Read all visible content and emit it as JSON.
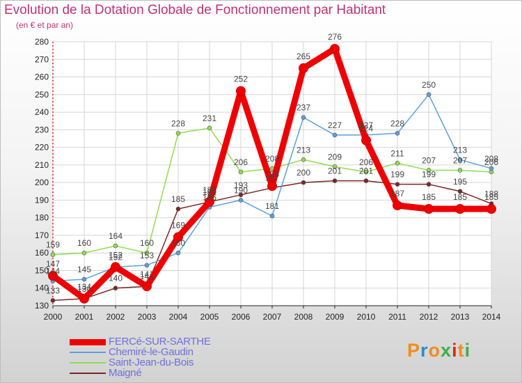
{
  "title": "Evolution de la Dotation Globale de Fonctionnement par Habitant",
  "subtitle": "(en € et par an)",
  "logo": {
    "letters": [
      "P",
      "r",
      "o",
      "x",
      "i",
      "t",
      "i"
    ],
    "colors": [
      "#f08c1e",
      "#1f8fd0",
      "#f08c1e",
      "#3cb043",
      "#e2231a",
      "#f08c1e",
      "#3cb043"
    ]
  },
  "chart_data": {
    "type": "line",
    "title": "Evolution de la Dotation Globale de Fonctionnement par Habitant",
    "subtitle": "(en € et par an)",
    "xlabel": "",
    "ylabel": "",
    "categories": [
      "2000",
      "2001",
      "2002",
      "2003",
      "2004",
      "2005",
      "2006",
      "2007",
      "2008",
      "2009",
      "2010",
      "2011",
      "2012",
      "2013",
      "2014"
    ],
    "ylim": [
      130,
      280
    ],
    "yticks": [
      130,
      140,
      150,
      160,
      170,
      180,
      190,
      200,
      210,
      220,
      230,
      240,
      250,
      260,
      270,
      280
    ],
    "grid": true,
    "legend_position": "bottom-left",
    "series": [
      {
        "name": "FERCé-SUR-SARTHE",
        "color": "#ee0000",
        "values": [
          147,
          134,
          152,
          141,
          169,
          189,
          252,
          198,
          265,
          276,
          224,
          187,
          185,
          185,
          185
        ]
      },
      {
        "name": "Chemiré-le-Gaudin",
        "color": "#5ba0d8",
        "values": [
          144,
          145,
          152,
          153,
          160,
          186,
          190,
          181,
          237,
          227,
          227,
          228,
          250,
          213,
          208
        ]
      },
      {
        "name": "Saint-Jean-du-Bois",
        "color": "#8fdc4e",
        "values": [
          159,
          160,
          164,
          160,
          228,
          231,
          206,
          208,
          213,
          209,
          206,
          211,
          207,
          207,
          206
        ]
      },
      {
        "name": "Maigné",
        "color": "#7a2626",
        "values": [
          133,
          134,
          140,
          141,
          185,
          189,
          193,
          197,
          200,
          201,
          201,
          199,
          199,
          195,
          188
        ]
      }
    ]
  }
}
